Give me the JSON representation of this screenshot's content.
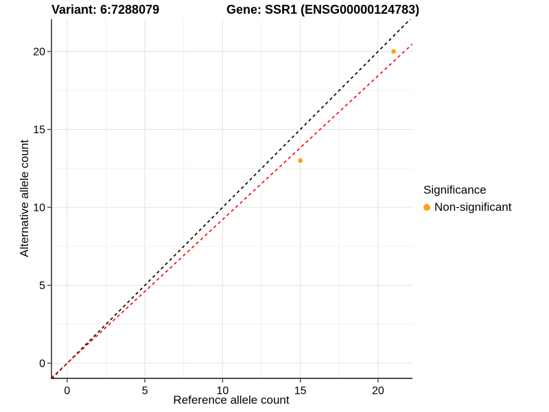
{
  "chart_data": {
    "type": "scatter",
    "titles": {
      "left": "Variant: 6:7288079",
      "right": "Gene: SSR1 (ENSG00000124783)"
    },
    "xlabel": "Reference allele count",
    "ylabel": "Alternative allele count",
    "xlim": [
      -1.01,
      22.21
    ],
    "ylim": [
      -0.97,
      22.07
    ],
    "x_ticks": [
      0,
      5,
      10,
      15,
      20
    ],
    "y_ticks": [
      0,
      5,
      10,
      15,
      20
    ],
    "x_minor_ticks": [
      2.5,
      7.5,
      12.5,
      17.5
    ],
    "y_minor_ticks": [
      2.5,
      7.5,
      12.5,
      17.5
    ],
    "grid": "on",
    "legend": {
      "position": "right",
      "title": "Significance",
      "entries": [
        {
          "label": "Non-significant",
          "marker": "circle",
          "color": "#FAA216"
        }
      ]
    },
    "series": [
      {
        "name": "Non-significant",
        "color": "#FAA216",
        "points": [
          {
            "x": 15,
            "y": 13
          },
          {
            "x": 21,
            "y": 20
          }
        ]
      }
    ],
    "reference_lines": [
      {
        "name": "identity-line",
        "slope": 1.0,
        "intercept": 0,
        "color": "#000000",
        "linestyle": "dashed"
      },
      {
        "name": "fit-line",
        "slope": 0.922,
        "intercept": 0,
        "color": "#FF0000",
        "linestyle": "dashed"
      }
    ],
    "colors": {
      "background": "#FFFFFF",
      "grid_major": "#E2E2E2",
      "grid_minor": "#F0F0F0",
      "axis_line": "#333333",
      "tick_mark": "#333333",
      "text": "#000000"
    }
  }
}
